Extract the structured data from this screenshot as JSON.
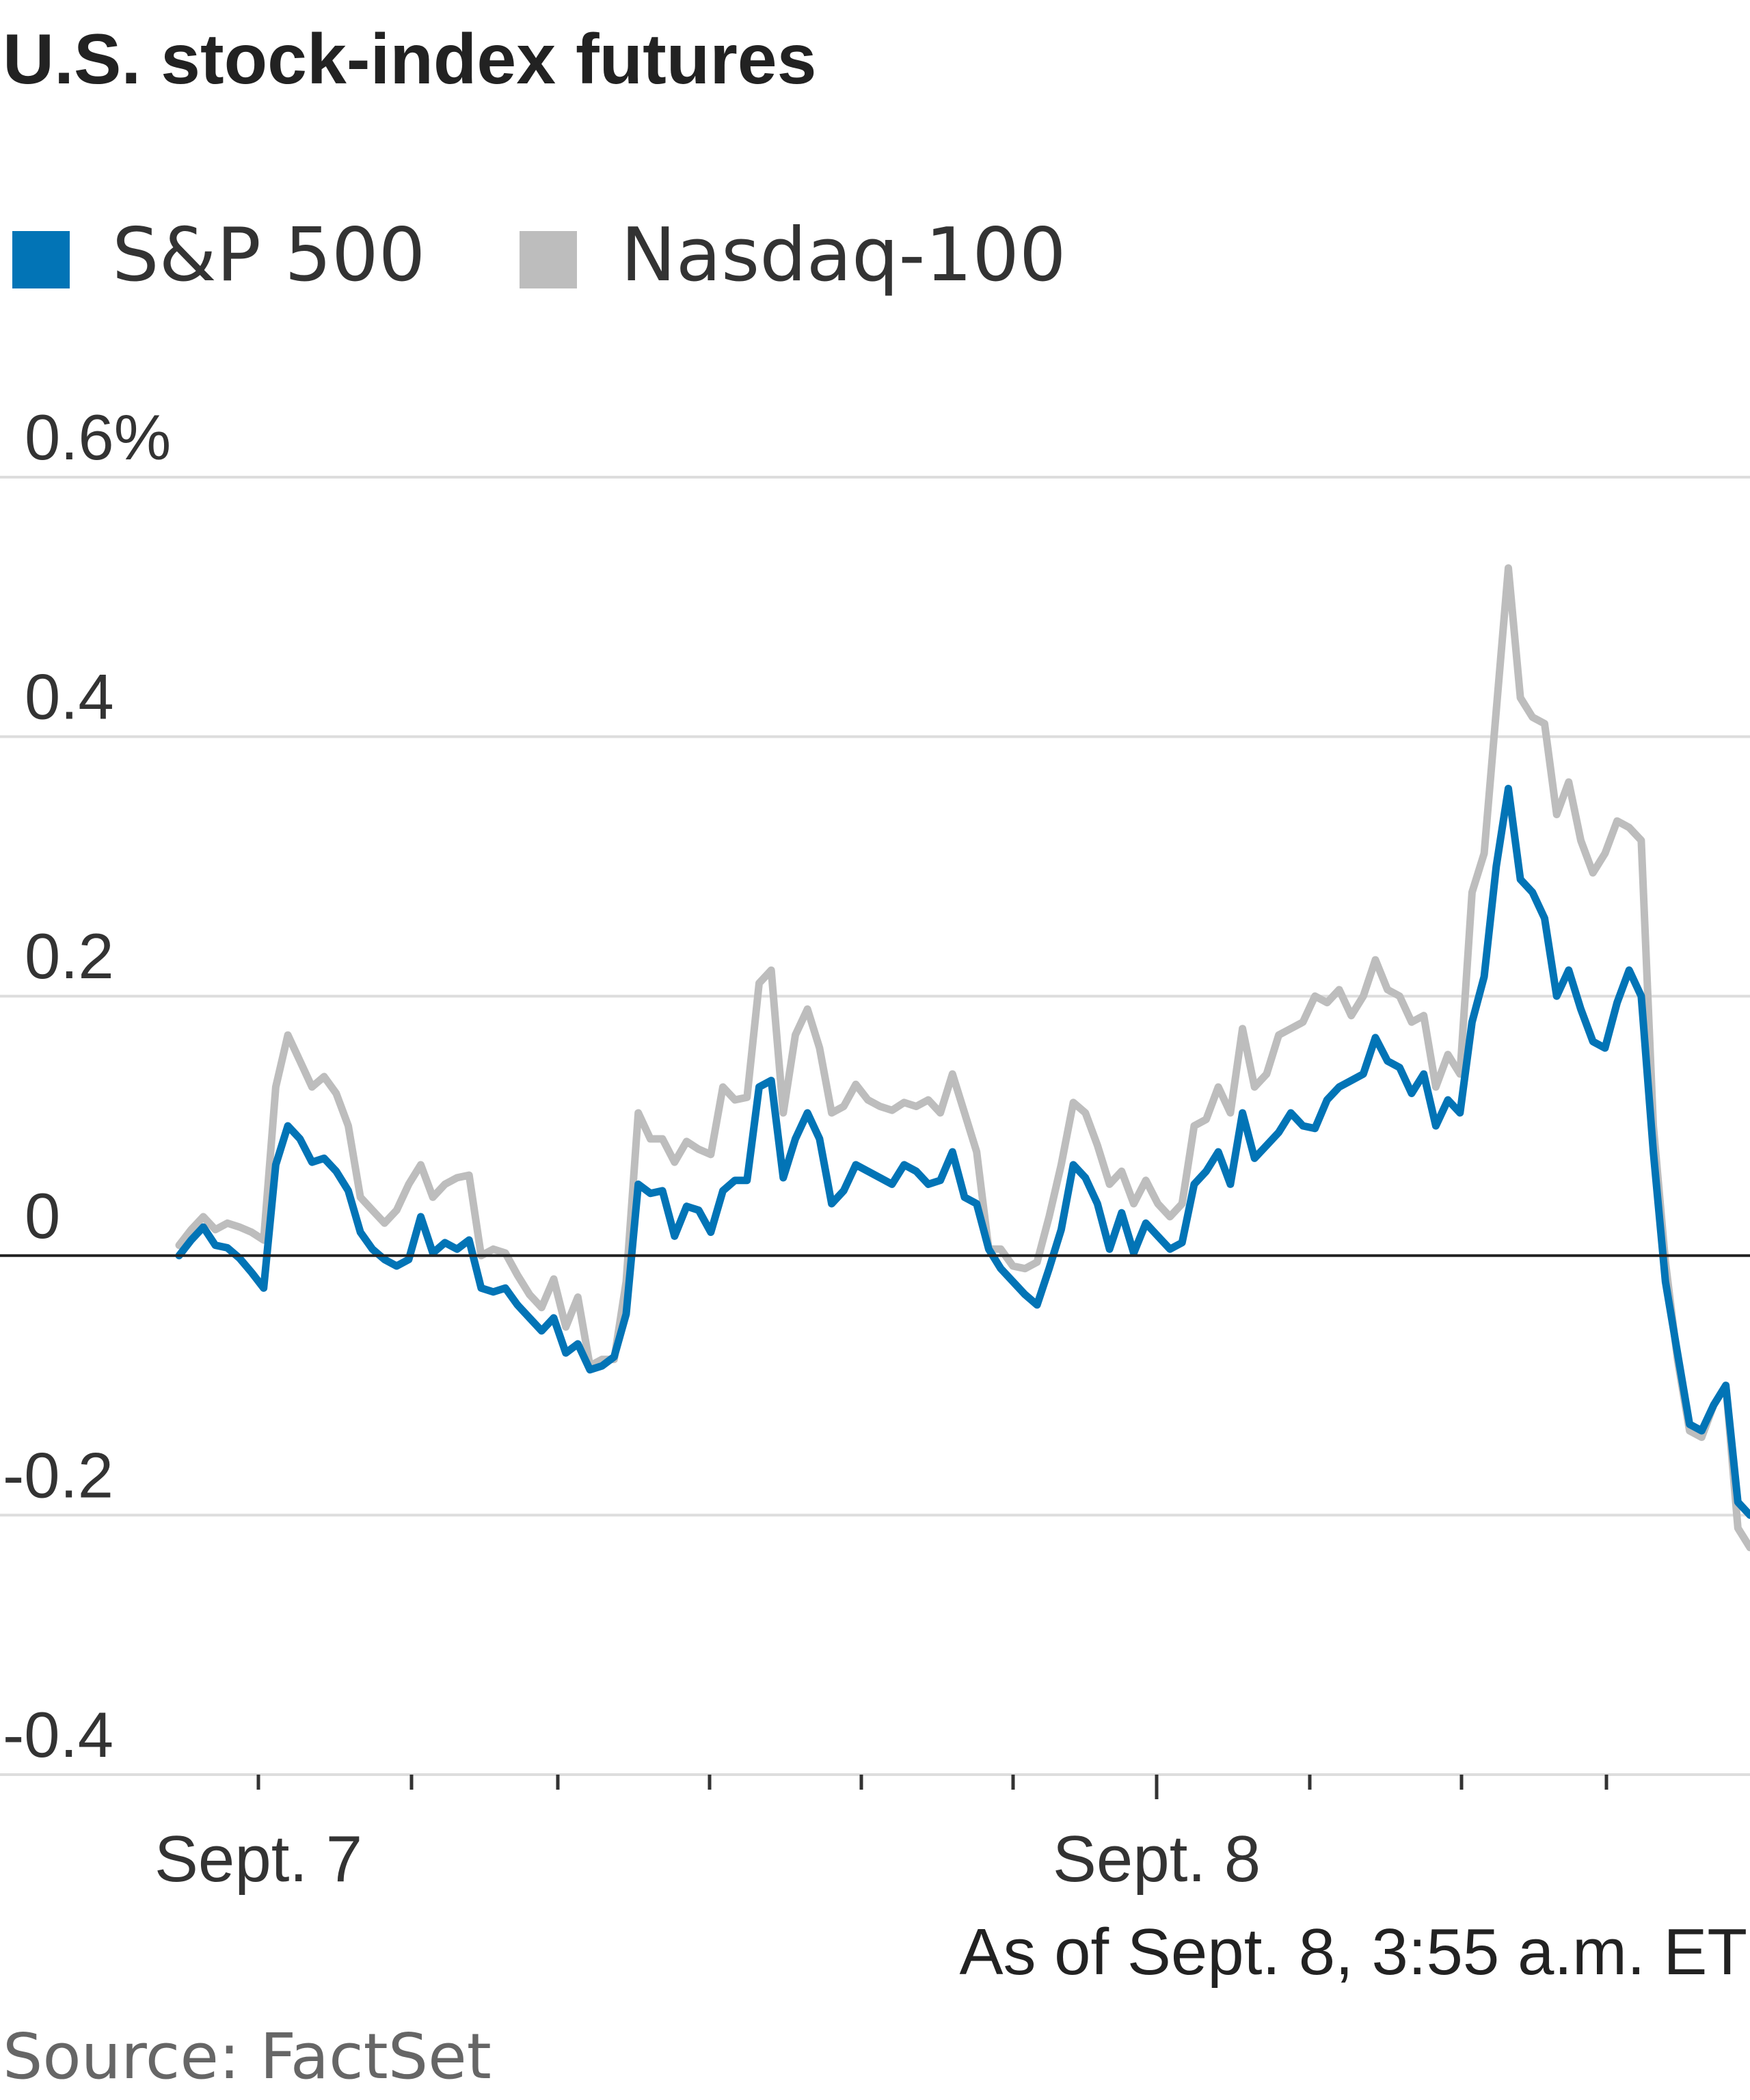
{
  "chart_data": {
    "type": "line",
    "title": "U.S. stock-index futures",
    "source": "Source: FactSet",
    "note": "As of Sept. 8, 3:55 a.m. ET",
    "ylim": [
      -0.4,
      0.6
    ],
    "y_ticks": [
      {
        "value": 0.6,
        "label": "0.6%"
      },
      {
        "value": 0.4,
        "label": "0.4"
      },
      {
        "value": 0.2,
        "label": "0.2"
      },
      {
        "value": 0,
        "label": "0"
      },
      {
        "value": -0.2,
        "label": "-0.2"
      },
      {
        "value": -0.4,
        "label": "-0.4"
      }
    ],
    "x_tick_labels": [
      "Sept. 7",
      "Sept. 8"
    ],
    "grid": true,
    "legend_position": "top-left",
    "colors": {
      "sp500": "#0274b6",
      "nasdaq": "#bdbdbd",
      "grid": "#dddddd",
      "zero": "#222222"
    },
    "series": [
      {
        "name": "S&P 500",
        "color": "#0274b6",
        "points": [
          [
            0,
            0
          ],
          [
            1,
            0.012
          ],
          [
            2,
            0.022
          ],
          [
            3,
            0.008
          ],
          [
            4,
            0.006
          ],
          [
            5,
            -0.002
          ],
          [
            6,
            -0.013
          ],
          [
            7,
            -0.025
          ],
          [
            8,
            0.07
          ],
          [
            9,
            0.1
          ],
          [
            10,
            0.09
          ],
          [
            11,
            0.072
          ],
          [
            12,
            0.075
          ],
          [
            13,
            0.065
          ],
          [
            14,
            0.05
          ],
          [
            15,
            0.018
          ],
          [
            16,
            0.005
          ],
          [
            17,
            -0.003
          ],
          [
            18,
            -0.008
          ],
          [
            19,
            -0.003
          ],
          [
            20,
            0.03
          ],
          [
            21,
            0.002
          ],
          [
            22,
            0.01
          ],
          [
            23,
            0.005
          ],
          [
            24,
            0.012
          ],
          [
            25,
            -0.025
          ],
          [
            26,
            -0.028
          ],
          [
            27,
            -0.025
          ],
          [
            28,
            -0.038
          ],
          [
            29,
            -0.048
          ],
          [
            30,
            -0.058
          ],
          [
            31,
            -0.048
          ],
          [
            32,
            -0.075
          ],
          [
            33,
            -0.068
          ],
          [
            34,
            -0.088
          ],
          [
            35,
            -0.085
          ],
          [
            36,
            -0.078
          ],
          [
            37,
            -0.045
          ],
          [
            38,
            0.055
          ],
          [
            39,
            0.048
          ],
          [
            40,
            0.05
          ],
          [
            41,
            0.015
          ],
          [
            42,
            0.038
          ],
          [
            43,
            0.035
          ],
          [
            44,
            0.018
          ],
          [
            45,
            0.05
          ],
          [
            46,
            0.058
          ],
          [
            47,
            0.058
          ],
          [
            48,
            0.13
          ],
          [
            49,
            0.135
          ],
          [
            50,
            0.06
          ],
          [
            51,
            0.09
          ],
          [
            52,
            0.11
          ],
          [
            53,
            0.09
          ],
          [
            54,
            0.04
          ],
          [
            55,
            0.05
          ],
          [
            56,
            0.07
          ],
          [
            57,
            0.065
          ],
          [
            58,
            0.06
          ],
          [
            59,
            0.055
          ],
          [
            60,
            0.07
          ],
          [
            61,
            0.065
          ],
          [
            62,
            0.055
          ],
          [
            63,
            0.058
          ],
          [
            64,
            0.08
          ],
          [
            65,
            0.045
          ],
          [
            66,
            0.04
          ],
          [
            67,
            0.005
          ],
          [
            68,
            -0.01
          ],
          [
            69,
            -0.02
          ],
          [
            70,
            -0.03
          ],
          [
            71,
            -0.038
          ],
          [
            72,
            -0.01
          ],
          [
            73,
            0.02
          ],
          [
            74,
            0.07
          ],
          [
            75,
            0.06
          ],
          [
            76,
            0.04
          ],
          [
            77,
            0.005
          ],
          [
            78,
            0.033
          ],
          [
            79,
            0.002
          ],
          [
            80,
            0.025
          ],
          [
            81,
            0.015
          ],
          [
            82,
            0.005
          ],
          [
            83,
            0.01
          ],
          [
            84,
            0.055
          ],
          [
            85,
            0.065
          ],
          [
            86,
            0.08
          ],
          [
            87,
            0.055
          ],
          [
            88,
            0.11
          ],
          [
            89,
            0.075
          ],
          [
            90,
            0.085
          ],
          [
            91,
            0.095
          ],
          [
            92,
            0.11
          ],
          [
            93,
            0.1
          ],
          [
            94,
            0.098
          ],
          [
            95,
            0.12
          ],
          [
            96,
            0.13
          ],
          [
            97,
            0.135
          ],
          [
            98,
            0.14
          ],
          [
            99,
            0.168
          ],
          [
            100,
            0.15
          ],
          [
            101,
            0.145
          ],
          [
            102,
            0.125
          ],
          [
            103,
            0.14
          ],
          [
            104,
            0.1
          ],
          [
            105,
            0.12
          ],
          [
            106,
            0.11
          ],
          [
            107,
            0.18
          ],
          [
            108,
            0.215
          ],
          [
            109,
            0.3
          ],
          [
            110,
            0.36
          ],
          [
            111,
            0.29
          ],
          [
            112,
            0.28
          ],
          [
            113,
            0.26
          ],
          [
            114,
            0.2
          ],
          [
            115,
            0.22
          ],
          [
            116,
            0.19
          ],
          [
            117,
            0.165
          ],
          [
            118,
            0.16
          ],
          [
            119,
            0.195
          ],
          [
            120,
            0.22
          ],
          [
            121,
            0.2
          ],
          [
            122,
            0.08
          ],
          [
            123,
            -0.02
          ],
          [
            124,
            -0.075
          ],
          [
            125,
            -0.13
          ],
          [
            126,
            -0.135
          ],
          [
            127,
            -0.115
          ],
          [
            128,
            -0.1
          ],
          [
            129,
            -0.19
          ],
          [
            130,
            -0.2
          ]
        ]
      },
      {
        "name": "Nasdaq-100",
        "color": "#bdbdbd",
        "points": [
          [
            0,
            0.008
          ],
          [
            1,
            0.02
          ],
          [
            2,
            0.03
          ],
          [
            3,
            0.02
          ],
          [
            4,
            0.025
          ],
          [
            5,
            0.022
          ],
          [
            6,
            0.018
          ],
          [
            7,
            0.012
          ],
          [
            8,
            0.13
          ],
          [
            9,
            0.17
          ],
          [
            10,
            0.15
          ],
          [
            11,
            0.13
          ],
          [
            12,
            0.138
          ],
          [
            13,
            0.125
          ],
          [
            14,
            0.1
          ],
          [
            15,
            0.045
          ],
          [
            16,
            0.035
          ],
          [
            17,
            0.025
          ],
          [
            18,
            0.035
          ],
          [
            19,
            0.055
          ],
          [
            20,
            0.07
          ],
          [
            21,
            0.045
          ],
          [
            22,
            0.055
          ],
          [
            23,
            0.06
          ],
          [
            24,
            0.062
          ],
          [
            25,
            0
          ],
          [
            26,
            0.005
          ],
          [
            27,
            0.002
          ],
          [
            28,
            -0.015
          ],
          [
            29,
            -0.03
          ],
          [
            30,
            -0.04
          ],
          [
            31,
            -0.018
          ],
          [
            32,
            -0.055
          ],
          [
            33,
            -0.032
          ],
          [
            34,
            -0.085
          ],
          [
            35,
            -0.08
          ],
          [
            36,
            -0.08
          ],
          [
            37,
            -0.02
          ],
          [
            38,
            0.11
          ],
          [
            39,
            0.09
          ],
          [
            40,
            0.09
          ],
          [
            41,
            0.072
          ],
          [
            42,
            0.088
          ],
          [
            43,
            0.082
          ],
          [
            44,
            0.078
          ],
          [
            45,
            0.13
          ],
          [
            46,
            0.12
          ],
          [
            47,
            0.122
          ],
          [
            48,
            0.21
          ],
          [
            49,
            0.22
          ],
          [
            50,
            0.11
          ],
          [
            51,
            0.17
          ],
          [
            52,
            0.19
          ],
          [
            53,
            0.16
          ],
          [
            54,
            0.11
          ],
          [
            55,
            0.115
          ],
          [
            56,
            0.132
          ],
          [
            57,
            0.12
          ],
          [
            58,
            0.115
          ],
          [
            59,
            0.112
          ],
          [
            60,
            0.118
          ],
          [
            61,
            0.115
          ],
          [
            62,
            0.12
          ],
          [
            63,
            0.11
          ],
          [
            64,
            0.14
          ],
          [
            65,
            0.11
          ],
          [
            66,
            0.08
          ],
          [
            67,
            0.005
          ],
          [
            68,
            0.005
          ],
          [
            69,
            -0.008
          ],
          [
            70,
            -0.01
          ],
          [
            71,
            -0.005
          ],
          [
            72,
            0.03
          ],
          [
            73,
            0.07
          ],
          [
            74,
            0.118
          ],
          [
            75,
            0.11
          ],
          [
            76,
            0.085
          ],
          [
            77,
            0.055
          ],
          [
            78,
            0.065
          ],
          [
            79,
            0.04
          ],
          [
            80,
            0.058
          ],
          [
            81,
            0.04
          ],
          [
            82,
            0.03
          ],
          [
            83,
            0.04
          ],
          [
            84,
            0.1
          ],
          [
            85,
            0.105
          ],
          [
            86,
            0.13
          ],
          [
            87,
            0.11
          ],
          [
            88,
            0.175
          ],
          [
            89,
            0.13
          ],
          [
            90,
            0.14
          ],
          [
            91,
            0.17
          ],
          [
            92,
            0.175
          ],
          [
            93,
            0.18
          ],
          [
            94,
            0.2
          ],
          [
            95,
            0.195
          ],
          [
            96,
            0.205
          ],
          [
            97,
            0.185
          ],
          [
            98,
            0.2
          ],
          [
            99,
            0.228
          ],
          [
            100,
            0.205
          ],
          [
            101,
            0.2
          ],
          [
            102,
            0.18
          ],
          [
            103,
            0.185
          ],
          [
            104,
            0.13
          ],
          [
            105,
            0.155
          ],
          [
            106,
            0.14
          ],
          [
            107,
            0.28
          ],
          [
            108,
            0.31
          ],
          [
            109,
            0.42
          ],
          [
            110,
            0.53
          ],
          [
            111,
            0.43
          ],
          [
            112,
            0.415
          ],
          [
            113,
            0.41
          ],
          [
            114,
            0.34
          ],
          [
            115,
            0.365
          ],
          [
            116,
            0.32
          ],
          [
            117,
            0.295
          ],
          [
            118,
            0.31
          ],
          [
            119,
            0.335
          ],
          [
            120,
            0.33
          ],
          [
            121,
            0.32
          ],
          [
            122,
            0.1
          ],
          [
            123,
            -0.005
          ],
          [
            124,
            -0.08
          ],
          [
            125,
            -0.135
          ],
          [
            126,
            -0.14
          ],
          [
            127,
            -0.115
          ],
          [
            128,
            -0.1
          ],
          [
            129,
            -0.21
          ],
          [
            130,
            -0.225
          ]
        ]
      }
    ]
  }
}
